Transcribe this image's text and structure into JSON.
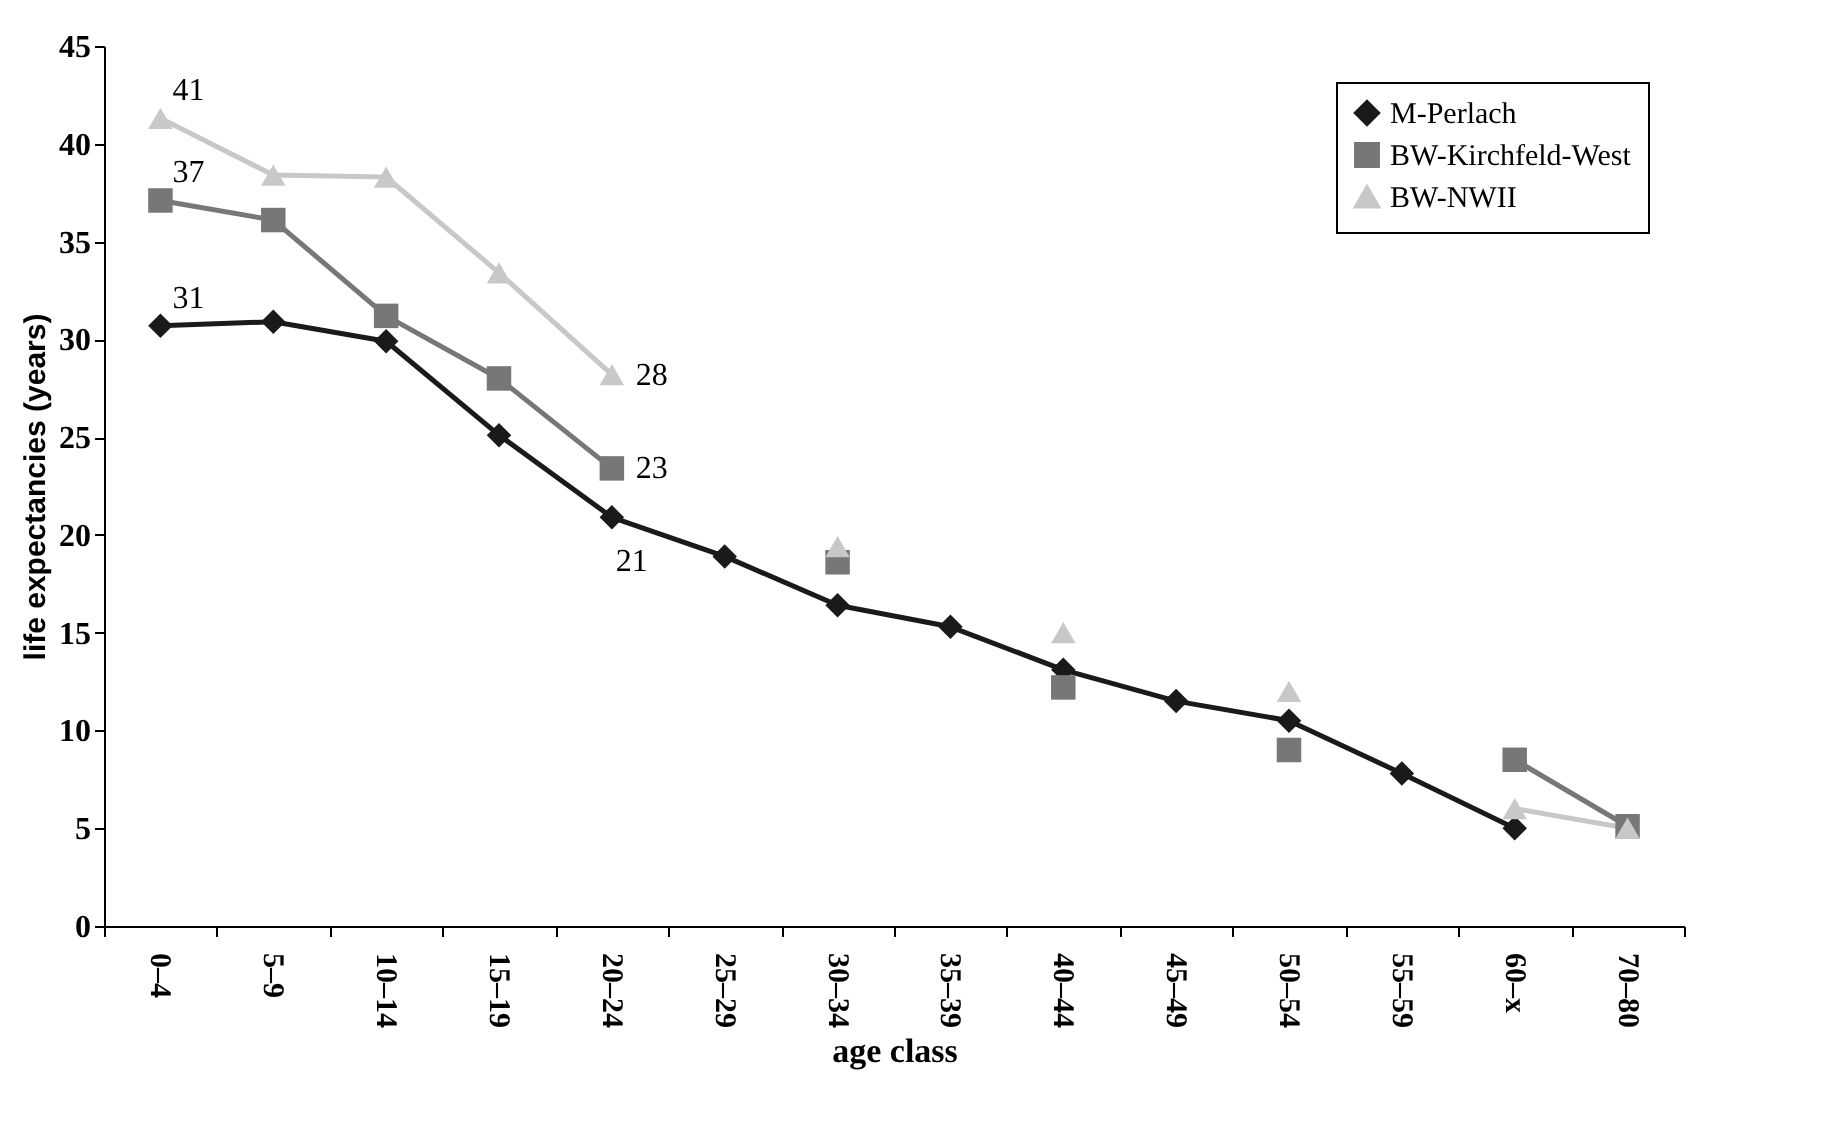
{
  "chart_data": {
    "type": "line",
    "xlabel": "age class",
    "ylabel": "life expectancies (years)",
    "categories": [
      "0–4",
      "5–9",
      "10–14",
      "15–19",
      "20–24",
      "25–29",
      "30–34",
      "35–39",
      "40–44",
      "45–49",
      "50–54",
      "55–59",
      "60–x",
      "70–80"
    ],
    "series": [
      {
        "name": "M-Perlach",
        "color": "#1a1a1a",
        "marker": "diamond",
        "values": [
          30.7,
          30.9,
          29.9,
          25.1,
          20.9,
          18.9,
          16.4,
          15.3,
          13.1,
          11.5,
          10.5,
          7.8,
          5.0,
          null
        ],
        "value_labels": [
          "31",
          null,
          null,
          null,
          "21",
          null,
          null,
          null,
          null,
          null,
          null,
          null,
          null,
          null
        ]
      },
      {
        "name": "BW-Kirchfeld-West",
        "color": "#777777",
        "marker": "square",
        "values": [
          37.1,
          36.1,
          31.2,
          28.0,
          23.4,
          null,
          18.6,
          null,
          12.2,
          null,
          9.0,
          null,
          8.5,
          5.1
        ],
        "value_labels": [
          "37",
          null,
          null,
          null,
          "23",
          null,
          null,
          null,
          null,
          null,
          null,
          null,
          null,
          null
        ]
      },
      {
        "name": "BW-NWII",
        "color": "#c8c8c8",
        "marker": "triangle",
        "values": [
          41.3,
          38.4,
          38.3,
          33.4,
          28.2,
          null,
          19.4,
          null,
          15.0,
          null,
          12.0,
          null,
          6.0,
          5.0
        ],
        "value_labels": [
          "41",
          null,
          null,
          null,
          "28",
          null,
          null,
          null,
          null,
          null,
          null,
          null,
          null,
          null
        ]
      }
    ],
    "ylim": [
      0,
      45
    ],
    "yticks": [
      0,
      5,
      10,
      15,
      20,
      25,
      30,
      35,
      40,
      45
    ],
    "grid": false,
    "legend": "top right",
    "line_style": "solid"
  }
}
